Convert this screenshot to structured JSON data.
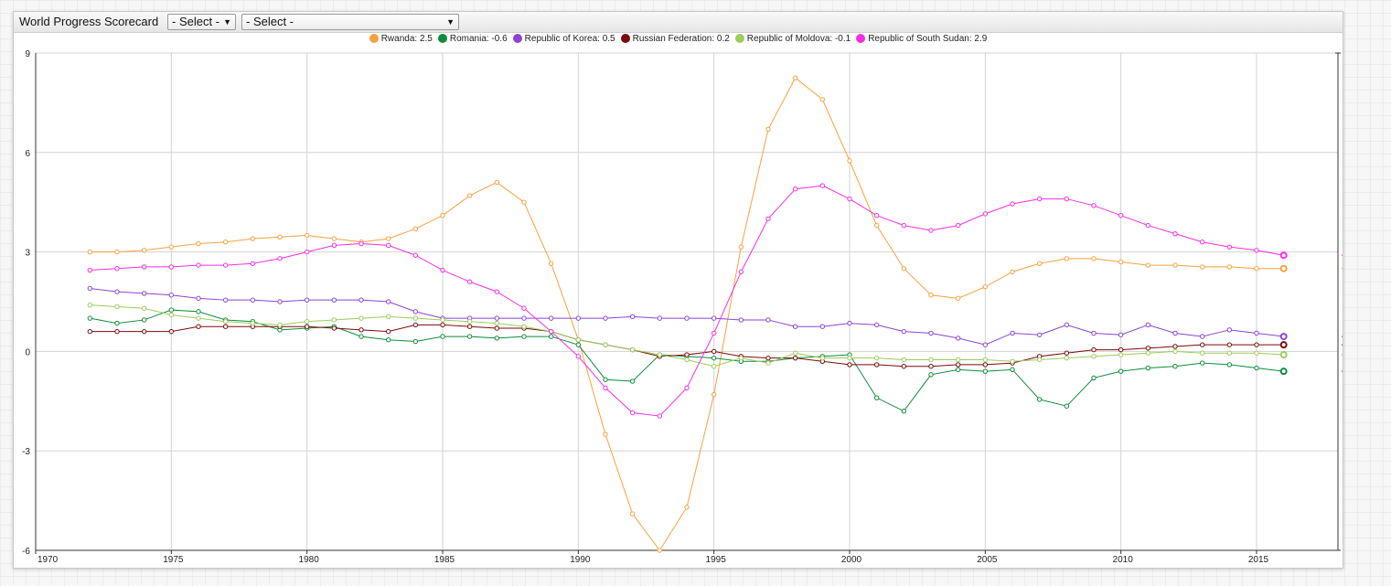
{
  "app": {
    "title": "World Progress Scorecard",
    "select1": "- Select -",
    "select2": "- Select -"
  },
  "chart_data": {
    "type": "line",
    "title": "",
    "xlabel": "",
    "ylabel": "",
    "xlim": [
      1970,
      2018
    ],
    "ylim": [
      -6,
      9
    ],
    "x_ticks": [
      1970,
      1975,
      1980,
      1985,
      1990,
      1995,
      2000,
      2005,
      2010,
      2015
    ],
    "y_ticks": [
      -6,
      -3,
      0,
      3,
      6,
      9
    ],
    "grid": true,
    "legend_position": "top",
    "x": [
      1972,
      1973,
      1974,
      1975,
      1976,
      1977,
      1978,
      1979,
      1980,
      1981,
      1982,
      1983,
      1984,
      1985,
      1986,
      1987,
      1988,
      1989,
      1990,
      1991,
      1992,
      1993,
      1994,
      1995,
      1996,
      1997,
      1998,
      1999,
      2000,
      2001,
      2002,
      2003,
      2004,
      2005,
      2006,
      2007,
      2008,
      2009,
      2010,
      2011,
      2012,
      2013,
      2014,
      2015,
      2016
    ],
    "series": [
      {
        "name": "Rwanda",
        "legend": "Rwanda: 2.5",
        "end_label": "2.5",
        "color": "#f7a13f",
        "values": [
          3.0,
          3.0,
          3.05,
          3.15,
          3.25,
          3.3,
          3.4,
          3.45,
          3.5,
          3.4,
          3.3,
          3.4,
          3.7,
          4.1,
          4.7,
          5.1,
          4.5,
          2.65,
          0.35,
          -2.5,
          -4.9,
          -6.0,
          -4.7,
          -1.3,
          3.15,
          6.7,
          8.25,
          7.6,
          5.75,
          3.8,
          2.5,
          1.7,
          1.6,
          1.95,
          2.4,
          2.65,
          2.8,
          2.8,
          2.7,
          2.6,
          2.6,
          2.55,
          2.55,
          2.5,
          2.5
        ]
      },
      {
        "name": "Romania",
        "legend": "Romania: -0.6",
        "end_label": "-0.6",
        "color": "#0f8c3b",
        "values": [
          1.0,
          0.85,
          0.95,
          1.25,
          1.2,
          0.95,
          0.9,
          0.65,
          0.7,
          0.75,
          0.45,
          0.35,
          0.3,
          0.45,
          0.45,
          0.4,
          0.45,
          0.45,
          0.2,
          -0.85,
          -0.9,
          -0.1,
          -0.15,
          -0.2,
          -0.3,
          -0.3,
          -0.2,
          -0.15,
          -0.1,
          -1.4,
          -1.8,
          -0.7,
          -0.55,
          -0.6,
          -0.55,
          -1.45,
          -1.65,
          -0.8,
          -0.6,
          -0.5,
          -0.45,
          -0.35,
          -0.4,
          -0.5,
          -0.6
        ]
      },
      {
        "name": "Republic of Korea",
        "legend": "Republic of Korea: 0.5",
        "end_label": "0.5",
        "color": "#8b44d4",
        "values": [
          1.9,
          1.8,
          1.75,
          1.7,
          1.6,
          1.55,
          1.55,
          1.5,
          1.55,
          1.55,
          1.55,
          1.5,
          1.2,
          1.0,
          1.0,
          1.0,
          1.0,
          1.0,
          1.0,
          1.0,
          1.05,
          1.0,
          1.0,
          1.0,
          0.95,
          0.95,
          0.75,
          0.75,
          0.85,
          0.8,
          0.6,
          0.55,
          0.4,
          0.2,
          0.55,
          0.5,
          0.8,
          0.55,
          0.5,
          0.8,
          0.55,
          0.45,
          0.65,
          0.55,
          0.45
        ]
      },
      {
        "name": "Russian Federation",
        "legend": "Russian Federation: 0.2",
        "end_label": "0.2",
        "color": "#7b0a0a",
        "values": [
          0.6,
          0.6,
          0.6,
          0.6,
          0.75,
          0.75,
          0.75,
          0.75,
          0.75,
          0.7,
          0.65,
          0.6,
          0.8,
          0.8,
          0.75,
          0.7,
          0.7,
          0.6,
          0.35,
          0.2,
          0.05,
          -0.15,
          -0.1,
          0.0,
          -0.15,
          -0.2,
          -0.2,
          -0.3,
          -0.4,
          -0.4,
          -0.45,
          -0.45,
          -0.4,
          -0.4,
          -0.35,
          -0.15,
          -0.05,
          0.05,
          0.05,
          0.1,
          0.15,
          0.2,
          0.2,
          0.2,
          0.2
        ]
      },
      {
        "name": "Republic of Moldova",
        "legend": "Republic of Moldova: -0.1",
        "end_label": "-0.1",
        "color": "#9ccc5a",
        "values": [
          1.4,
          1.35,
          1.3,
          1.1,
          1.0,
          0.9,
          0.85,
          0.8,
          0.9,
          0.95,
          1.0,
          1.05,
          1.0,
          0.95,
          0.9,
          0.85,
          0.75,
          0.6,
          0.35,
          0.2,
          0.05,
          -0.1,
          -0.25,
          -0.45,
          -0.2,
          -0.35,
          -0.05,
          -0.2,
          -0.2,
          -0.2,
          -0.25,
          -0.25,
          -0.25,
          -0.25,
          -0.3,
          -0.25,
          -0.2,
          -0.15,
          -0.1,
          -0.05,
          0.0,
          -0.05,
          -0.05,
          -0.05,
          -0.1
        ]
      },
      {
        "name": "Republic of South Sudan",
        "legend": "Republic of South Sudan: 2.9",
        "end_label": "2.9",
        "color": "#f52fe6",
        "values": [
          2.45,
          2.5,
          2.55,
          2.55,
          2.6,
          2.6,
          2.65,
          2.8,
          3.0,
          3.2,
          3.25,
          3.2,
          2.9,
          2.45,
          2.1,
          1.8,
          1.3,
          0.6,
          -0.15,
          -1.1,
          -1.85,
          -1.95,
          -1.1,
          0.55,
          2.4,
          4.0,
          4.9,
          5.0,
          4.6,
          4.1,
          3.8,
          3.65,
          3.8,
          4.15,
          4.45,
          4.6,
          4.6,
          4.4,
          4.1,
          3.8,
          3.55,
          3.3,
          3.15,
          3.05,
          2.9
        ]
      }
    ]
  }
}
